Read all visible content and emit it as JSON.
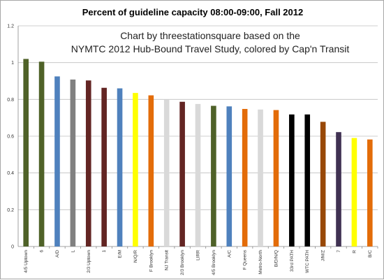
{
  "chart_data": {
    "type": "bar",
    "title": "Percent of guideline capacity 08:00-09:00, Fall 2012",
    "annotation": [
      "Chart by threestationsquare based on the",
      "NYMTC 2012 Hub-Bound Travel Study, colored by Cap'n Transit"
    ],
    "xlabel": "",
    "ylabel": "",
    "ylim": [
      0,
      1.2
    ],
    "yticks": [
      "0",
      "0.2",
      "0.4",
      "0.6",
      "0.8",
      "1",
      "1.2"
    ],
    "grid": true,
    "categories": [
      "4/5 Uptown",
      "6",
      "A/D",
      "L",
      "2/3 Uptown",
      "1",
      "E/M",
      "N/Q/R",
      "F Brooklyn",
      "NJ Transit",
      "2/3 Brooklyn",
      "LIRR",
      "4/5 Brooklyn",
      "A/C",
      "F Queens",
      "Metro-North",
      "B/D/N/Q",
      "33rd PATH",
      "WTC PATH",
      "J/M/Z",
      "7",
      "R",
      "B/C"
    ],
    "values": [
      1.02,
      1.005,
      0.925,
      0.908,
      0.903,
      0.863,
      0.86,
      0.835,
      0.822,
      0.8,
      0.787,
      0.775,
      0.765,
      0.762,
      0.748,
      0.745,
      0.742,
      0.718,
      0.718,
      0.678,
      0.622,
      0.59,
      0.582
    ],
    "colors": [
      "#4f6228",
      "#4f6228",
      "#4f81bd",
      "#808080",
      "#632523",
      "#632523",
      "#4f81bd",
      "#ffff00",
      "#e36c09",
      "#d9d9d9",
      "#632523",
      "#d9d9d9",
      "#4f6228",
      "#4f81bd",
      "#e36c09",
      "#d9d9d9",
      "#e36c09",
      "#000000",
      "#000000",
      "#984807",
      "#403152",
      "#ffff00",
      "#e36c09"
    ]
  }
}
